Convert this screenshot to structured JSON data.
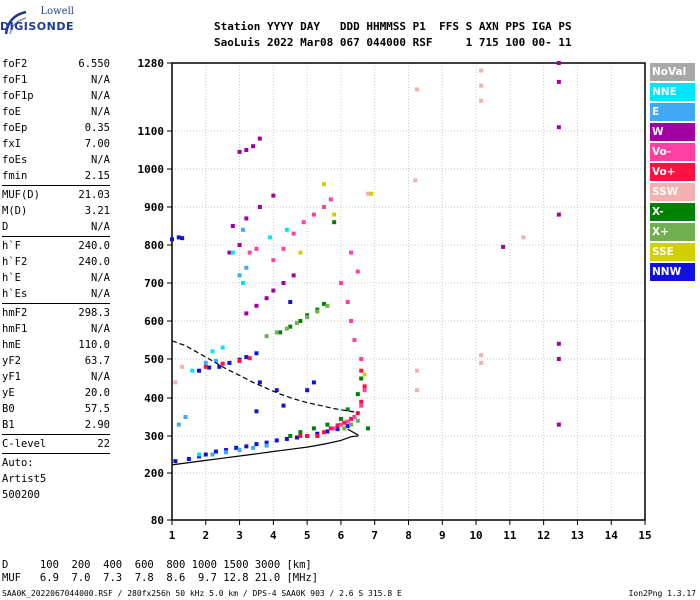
{
  "logo": {
    "top": "Lowell",
    "main": "DIGISONDE"
  },
  "header": {
    "row1": "Station YYYY DAY   DDD HHMMSS P1  FFS S AXN PPS IGA PS",
    "row2": "SaoLuis 2022 Mar08 067 044000 RSF     1 715 100 00- 11"
  },
  "params": [
    {
      "k": "foF2",
      "v": "6.550"
    },
    {
      "k": "foF1",
      "v": "N/A"
    },
    {
      "k": "foF1p",
      "v": "N/A"
    },
    {
      "k": "foE",
      "v": "N/A"
    },
    {
      "k": "foEp",
      "v": "0.35"
    },
    {
      "k": "fxI",
      "v": "7.00"
    },
    {
      "k": "foEs",
      "v": "N/A"
    },
    {
      "k": "fmin",
      "v": "2.15"
    },
    {
      "sep": true
    },
    {
      "k": "MUF(D)",
      "v": "21.03"
    },
    {
      "k": "M(D)",
      "v": "3.21"
    },
    {
      "k": "D",
      "v": "N/A"
    },
    {
      "sep": true
    },
    {
      "k": "h`F",
      "v": "240.0"
    },
    {
      "k": "h`F2",
      "v": "240.0"
    },
    {
      "k": "h`E",
      "v": "N/A"
    },
    {
      "k": "h`Es",
      "v": "N/A"
    },
    {
      "sep": true
    },
    {
      "k": "hmF2",
      "v": "298.3"
    },
    {
      "k": "hmF1",
      "v": "N/A"
    },
    {
      "k": "hmE",
      "v": "110.0"
    },
    {
      "k": "yF2",
      "v": "63.7"
    },
    {
      "k": "yF1",
      "v": "N/A"
    },
    {
      "k": "yE",
      "v": "20.0"
    },
    {
      "k": "B0",
      "v": "57.5"
    },
    {
      "k": "B1",
      "v": "2.90"
    },
    {
      "sep": true
    },
    {
      "k": "C-level",
      "v": "22"
    },
    {
      "sep": true
    }
  ],
  "notes": [
    "Auto:",
    "Artist5",
    "500200"
  ],
  "legend": [
    {
      "label": "NoVal",
      "color": "#a8a8a8"
    },
    {
      "label": "NNE",
      "color": "#00e5ff"
    },
    {
      "label": "E",
      "color": "#3fa9f5"
    },
    {
      "label": "W",
      "color": "#a000a0"
    },
    {
      "label": "Vo-",
      "color": "#ff40a0"
    },
    {
      "label": "Vo+",
      "color": "#ff1040"
    },
    {
      "label": "SSW",
      "color": "#f4b0b0"
    },
    {
      "label": "X-",
      "color": "#008000"
    },
    {
      "label": "X+",
      "color": "#70b050"
    },
    {
      "label": "SSE",
      "color": "#d0d000"
    },
    {
      "label": "NNW",
      "color": "#1010e0"
    }
  ],
  "muf_table": {
    "row1": "D     100  200  400  600  800 1000 1500 3000 [km]",
    "row2": "MUF   6.9  7.0  7.3  7.8  8.6  9.7 12.8 21.0 [MHz]"
  },
  "footer": "SAA0K_2022067044000.RSF / 280fx256h 50 kHz 5.0 km / DPS-4 SAA0K 903 / 2.6 S 315.8 E",
  "version": "Ion2Png 1.3.17",
  "chart_data": {
    "type": "scatter",
    "x_ticks": [
      "1",
      "2",
      "3",
      "4",
      "5",
      "6",
      "7",
      "8",
      "9",
      "10",
      "11",
      "12",
      "13",
      "14",
      "15"
    ],
    "y_ticks": [
      "80",
      "200",
      "300",
      "400",
      "500",
      "600",
      "700",
      "800",
      "900",
      "1000",
      "1100",
      "1280"
    ],
    "xlim": [
      1,
      15
    ],
    "ylim": [
      80,
      1280
    ],
    "grid": true,
    "legend_position": "right",
    "series": [
      {
        "color": "#1010e0",
        "points": [
          [
            1.1,
            232
          ],
          [
            1.5,
            238
          ],
          [
            1.8,
            245
          ],
          [
            2.0,
            250
          ],
          [
            2.3,
            258
          ],
          [
            2.6,
            262
          ],
          [
            2.9,
            268
          ],
          [
            3.2,
            272
          ],
          [
            3.5,
            278
          ],
          [
            3.8,
            282
          ],
          [
            4.1,
            288
          ],
          [
            4.4,
            292
          ],
          [
            4.7,
            296
          ],
          [
            5.0,
            300
          ],
          [
            5.3,
            306
          ],
          [
            5.6,
            312
          ],
          [
            5.9,
            318
          ],
          [
            6.2,
            326
          ],
          [
            1.8,
            470
          ],
          [
            2.1,
            478
          ],
          [
            2.4,
            480
          ],
          [
            2.7,
            490
          ],
          [
            3.0,
            498
          ],
          [
            3.2,
            505
          ],
          [
            3.5,
            515
          ],
          [
            1.0,
            815
          ],
          [
            1.2,
            820
          ],
          [
            1.3,
            818
          ],
          [
            3.5,
            365
          ],
          [
            3.6,
            440
          ],
          [
            4.1,
            420
          ],
          [
            4.3,
            380
          ],
          [
            5.0,
            420
          ],
          [
            5.2,
            440
          ],
          [
            4.5,
            650
          ]
        ]
      },
      {
        "color": "#ff1040",
        "points": [
          [
            5.3,
            300
          ],
          [
            5.5,
            310
          ],
          [
            5.7,
            320
          ],
          [
            5.9,
            328
          ],
          [
            6.1,
            335
          ],
          [
            6.3,
            345
          ],
          [
            6.5,
            360
          ],
          [
            6.6,
            390
          ],
          [
            6.7,
            430
          ],
          [
            6.6,
            470
          ],
          [
            2.0,
            480
          ],
          [
            2.5,
            488
          ],
          [
            3.0,
            495
          ],
          [
            3.3,
            502
          ],
          [
            4.8,
            300
          ],
          [
            5.0,
            300
          ]
        ]
      },
      {
        "color": "#ff40a0",
        "points": [
          [
            5.8,
            320
          ],
          [
            6.0,
            330
          ],
          [
            6.2,
            338
          ],
          [
            6.4,
            350
          ],
          [
            6.6,
            380
          ],
          [
            6.7,
            420
          ],
          [
            6.6,
            500
          ],
          [
            6.4,
            550
          ],
          [
            6.3,
            600
          ],
          [
            6.2,
            650
          ],
          [
            6.0,
            700
          ],
          [
            4.0,
            760
          ],
          [
            4.3,
            790
          ],
          [
            4.6,
            830
          ],
          [
            4.9,
            860
          ],
          [
            5.2,
            880
          ],
          [
            5.5,
            900
          ],
          [
            5.7,
            920
          ],
          [
            6.3,
            780
          ],
          [
            6.5,
            730
          ],
          [
            3.3,
            780
          ],
          [
            3.5,
            790
          ]
        ]
      },
      {
        "color": "#008000",
        "points": [
          [
            4.5,
            300
          ],
          [
            4.8,
            310
          ],
          [
            5.2,
            320
          ],
          [
            5.6,
            330
          ],
          [
            6.0,
            345
          ],
          [
            6.2,
            370
          ],
          [
            6.5,
            410
          ],
          [
            6.6,
            450
          ],
          [
            4.2,
            570
          ],
          [
            4.5,
            585
          ],
          [
            4.8,
            600
          ],
          [
            5.0,
            615
          ],
          [
            5.3,
            630
          ],
          [
            5.5,
            645
          ],
          [
            5.8,
            860
          ],
          [
            6.8,
            320
          ]
        ]
      },
      {
        "color": "#a000a0",
        "points": [
          [
            3.2,
            620
          ],
          [
            3.5,
            640
          ],
          [
            3.8,
            660
          ],
          [
            4.0,
            680
          ],
          [
            4.3,
            700
          ],
          [
            4.6,
            720
          ],
          [
            3.0,
            1045
          ],
          [
            3.2,
            1050
          ],
          [
            3.4,
            1060
          ],
          [
            3.6,
            1080
          ],
          [
            2.8,
            850
          ],
          [
            3.2,
            870
          ],
          [
            3.6,
            900
          ],
          [
            4.0,
            930
          ],
          [
            2.7,
            780
          ],
          [
            3.0,
            800
          ],
          [
            12.45,
            1280
          ],
          [
            12.45,
            1230
          ],
          [
            12.45,
            1110
          ],
          [
            12.45,
            880
          ],
          [
            12.45,
            540
          ],
          [
            12.45,
            500
          ],
          [
            12.45,
            330
          ],
          [
            10.8,
            795
          ]
        ]
      },
      {
        "color": "#70b050",
        "points": [
          [
            3.8,
            560
          ],
          [
            4.1,
            570
          ],
          [
            4.4,
            580
          ],
          [
            4.7,
            595
          ],
          [
            5.0,
            610
          ],
          [
            5.3,
            625
          ],
          [
            5.6,
            640
          ],
          [
            6.1,
            320
          ],
          [
            6.3,
            330
          ],
          [
            6.5,
            340
          ]
        ]
      },
      {
        "color": "#3fa9f5",
        "points": [
          [
            2.2,
            250
          ],
          [
            2.6,
            256
          ],
          [
            3.0,
            262
          ],
          [
            3.4,
            268
          ],
          [
            3.8,
            274
          ],
          [
            2.0,
            490
          ],
          [
            2.3,
            495
          ],
          [
            1.2,
            330
          ],
          [
            1.4,
            350
          ],
          [
            3.0,
            720
          ],
          [
            3.2,
            740
          ],
          [
            3.1,
            840
          ]
        ]
      },
      {
        "color": "#f4b0b0",
        "points": [
          [
            10.15,
            1260
          ],
          [
            10.15,
            1220
          ],
          [
            10.15,
            1180
          ],
          [
            10.15,
            510
          ],
          [
            10.15,
            490
          ],
          [
            8.25,
            1210
          ],
          [
            8.25,
            470
          ],
          [
            8.25,
            420
          ],
          [
            11.4,
            820
          ],
          [
            1.1,
            440
          ],
          [
            1.3,
            480
          ],
          [
            6.8,
            935
          ],
          [
            8.2,
            970
          ]
        ]
      },
      {
        "color": "#d0d000",
        "points": [
          [
            5.5,
            960
          ],
          [
            6.9,
            935
          ],
          [
            5.8,
            880
          ],
          [
            6.7,
            460
          ],
          [
            4.8,
            780
          ]
        ]
      },
      {
        "color": "#00e5ff",
        "points": [
          [
            3.9,
            820
          ],
          [
            4.4,
            840
          ],
          [
            2.8,
            780
          ],
          [
            3.1,
            700
          ],
          [
            2.2,
            520
          ],
          [
            2.5,
            530
          ],
          [
            1.6,
            470
          ],
          [
            1.8,
            250
          ]
        ]
      }
    ],
    "curves": [
      {
        "style": "solid",
        "points": [
          [
            1.0,
            222
          ],
          [
            1.5,
            228
          ],
          [
            2.0,
            234
          ],
          [
            2.5,
            240
          ],
          [
            3.0,
            246
          ],
          [
            3.5,
            252
          ],
          [
            4.0,
            258
          ],
          [
            4.5,
            264
          ],
          [
            5.0,
            270
          ],
          [
            5.5,
            278
          ],
          [
            6.0,
            288
          ],
          [
            6.3,
            298
          ],
          [
            6.5,
            300
          ],
          [
            6.5,
            303
          ],
          [
            6.2,
            318
          ]
        ]
      },
      {
        "style": "dashed",
        "points": [
          [
            1.0,
            548
          ],
          [
            1.4,
            535
          ],
          [
            1.8,
            515
          ],
          [
            2.2,
            495
          ],
          [
            2.6,
            475
          ],
          [
            3.0,
            458
          ],
          [
            3.4,
            440
          ],
          [
            3.8,
            425
          ],
          [
            4.2,
            410
          ],
          [
            4.6,
            398
          ],
          [
            5.0,
            388
          ],
          [
            5.4,
            380
          ],
          [
            5.8,
            372
          ],
          [
            6.2,
            366
          ],
          [
            6.5,
            362
          ]
        ]
      }
    ]
  }
}
